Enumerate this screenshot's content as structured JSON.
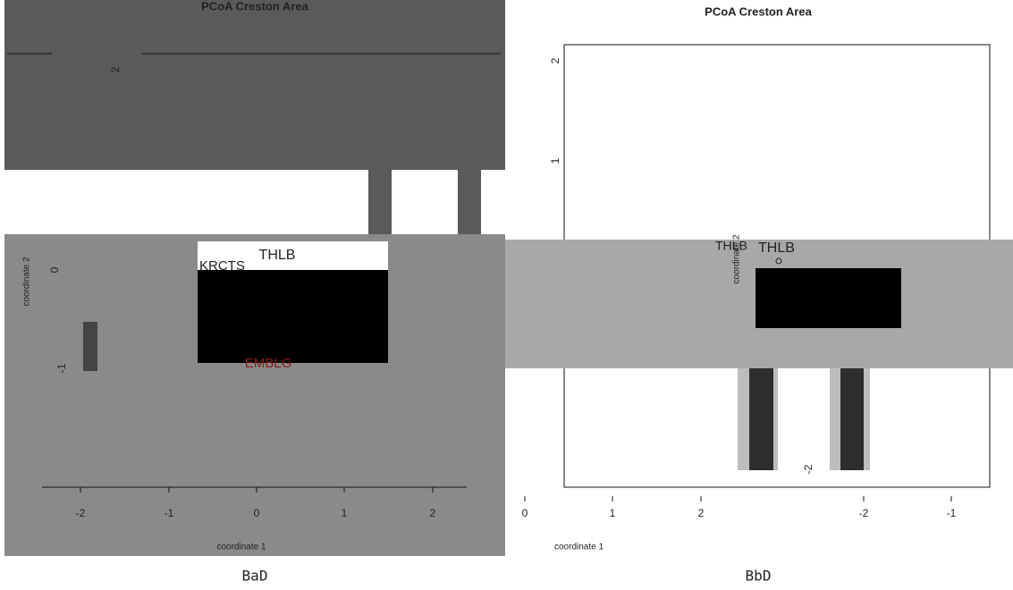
{
  "panels": [
    {
      "title": "PCoA Creston Area",
      "x_label": "coordinate 1",
      "y_label": "coordinate 2",
      "x_ticks": [
        "-2",
        "-1",
        "0",
        "1",
        "2"
      ],
      "y_ticks": [
        "2",
        "0",
        "-1"
      ],
      "point_labels": [
        "THLB",
        "KRCTS",
        "EMBLG"
      ],
      "caption": "BaD"
    },
    {
      "title": "PCoA Creston Area",
      "x_label": "coordinate 1",
      "y_label": "coordinate 2",
      "x_ticks": [
        "0",
        "1",
        "2",
        "-2",
        "-1"
      ],
      "y_ticks": [
        "2",
        "1",
        "-2"
      ],
      "point_labels": [
        "THLB",
        "THLB"
      ],
      "caption": "BbD"
    }
  ]
}
